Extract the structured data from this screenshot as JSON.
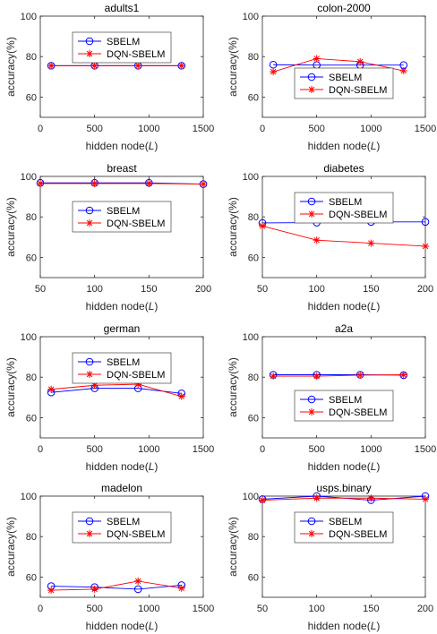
{
  "colors": {
    "sbelm": "#0000ff",
    "dqn": "#ff0000",
    "axis": "#262626"
  },
  "legend_labels": [
    "SBELM",
    "DQN-SBELM"
  ],
  "chart_data": [
    {
      "type": "line",
      "title": "adults1",
      "xlabel": "hidden node(L)",
      "ylabel": "accuracy(%)",
      "x": [
        100,
        500,
        900,
        1300
      ],
      "xlim": [
        0,
        1500
      ],
      "ylim": [
        50,
        100
      ],
      "xticks": [
        0,
        500,
        1000,
        1500
      ],
      "yticks": [
        60,
        80,
        100
      ],
      "legend": "upper-middle",
      "series": [
        {
          "name": "SBELM",
          "marker": "circle",
          "values": [
            75.5,
            75.5,
            75.5,
            75.5
          ]
        },
        {
          "name": "DQN-SBELM",
          "marker": "star",
          "values": [
            75.5,
            75.5,
            75.5,
            75.5
          ]
        }
      ]
    },
    {
      "type": "line",
      "title": "colon-2000",
      "xlabel": "hidden node(L)",
      "ylabel": "accuracy(%)",
      "x": [
        100,
        500,
        900,
        1300
      ],
      "xlim": [
        0,
        1500
      ],
      "ylim": [
        50,
        100
      ],
      "xticks": [
        0,
        500,
        1000,
        1500
      ],
      "yticks": [
        60,
        80,
        100
      ],
      "legend": "center",
      "series": [
        {
          "name": "SBELM",
          "marker": "circle",
          "values": [
            76,
            75.8,
            75.8,
            75.8
          ]
        },
        {
          "name": "DQN-SBELM",
          "marker": "star",
          "values": [
            72.5,
            79,
            77.5,
            73
          ]
        }
      ]
    },
    {
      "type": "line",
      "title": "breast",
      "xlabel": "hidden node(L)",
      "ylabel": "accuracy(%)",
      "x": [
        50,
        100,
        150,
        200
      ],
      "xlim": [
        50,
        200
      ],
      "ylim": [
        50,
        100
      ],
      "xticks": [
        50,
        100,
        150,
        200
      ],
      "yticks": [
        60,
        80,
        100
      ],
      "legend": "middle",
      "series": [
        {
          "name": "SBELM",
          "marker": "circle",
          "values": [
            96.8,
            96.8,
            96.8,
            96.2
          ]
        },
        {
          "name": "DQN-SBELM",
          "marker": "star",
          "values": [
            96.5,
            96.5,
            96.5,
            96.2
          ]
        }
      ]
    },
    {
      "type": "line",
      "title": "diabetes",
      "xlabel": "hidden node(L)",
      "ylabel": "accuracy(%)",
      "x": [
        50,
        100,
        150,
        200
      ],
      "xlim": [
        50,
        200
      ],
      "ylim": [
        50,
        100
      ],
      "xticks": [
        50,
        100,
        150,
        200
      ],
      "yticks": [
        60,
        80,
        100
      ],
      "legend": "upper-middle",
      "series": [
        {
          "name": "SBELM",
          "marker": "circle",
          "values": [
            77,
            77.2,
            77.5,
            77.5
          ]
        },
        {
          "name": "DQN-SBELM",
          "marker": "star",
          "values": [
            75.5,
            68.5,
            67,
            65.5
          ]
        }
      ]
    },
    {
      "type": "line",
      "title": "german",
      "xlabel": "hidden node(L)",
      "ylabel": "accuracy(%)",
      "x": [
        100,
        500,
        900,
        1300
      ],
      "xlim": [
        0,
        1500
      ],
      "ylim": [
        50,
        100
      ],
      "xticks": [
        0,
        500,
        1000,
        1500
      ],
      "yticks": [
        60,
        80,
        100
      ],
      "legend": "upper-middle",
      "series": [
        {
          "name": "SBELM",
          "marker": "circle",
          "values": [
            72.5,
            74.5,
            74.5,
            72
          ]
        },
        {
          "name": "DQN-SBELM",
          "marker": "star",
          "values": [
            74,
            76,
            76.5,
            70.5
          ]
        }
      ]
    },
    {
      "type": "line",
      "title": "a2a",
      "xlabel": "hidden node(L)",
      "ylabel": "accuracy(%)",
      "x": [
        100,
        500,
        900,
        1300
      ],
      "xlim": [
        0,
        1500
      ],
      "ylim": [
        50,
        100
      ],
      "xticks": [
        0,
        500,
        1000,
        1500
      ],
      "yticks": [
        60,
        80,
        100
      ],
      "legend": "lower-middle",
      "series": [
        {
          "name": "SBELM",
          "marker": "circle",
          "values": [
            81.2,
            81.2,
            81.2,
            81
          ]
        },
        {
          "name": "DQN-SBELM",
          "marker": "star",
          "values": [
            80.5,
            80.5,
            81,
            81.2
          ]
        }
      ]
    },
    {
      "type": "line",
      "title": "madelon",
      "xlabel": "hidden node(L)",
      "ylabel": "accuracy(%)",
      "x": [
        100,
        500,
        900,
        1300
      ],
      "xlim": [
        0,
        1500
      ],
      "ylim": [
        50,
        100
      ],
      "xticks": [
        0,
        500,
        1000,
        1500
      ],
      "yticks": [
        60,
        80,
        100
      ],
      "legend": "upper-middle",
      "series": [
        {
          "name": "SBELM",
          "marker": "circle",
          "values": [
            55.5,
            55,
            54,
            56
          ]
        },
        {
          "name": "DQN-SBELM",
          "marker": "star",
          "values": [
            53.5,
            54,
            58,
            54.5
          ]
        }
      ]
    },
    {
      "type": "line",
      "title": "usps.binary",
      "xlabel": "hidden node(L)",
      "ylabel": "accuracy(%)",
      "x": [
        50,
        100,
        150,
        200
      ],
      "xlim": [
        50,
        200
      ],
      "ylim": [
        50,
        100
      ],
      "xticks": [
        50,
        100,
        150,
        200
      ],
      "yticks": [
        60,
        80,
        100
      ],
      "legend": "upper-middle",
      "series": [
        {
          "name": "SBELM",
          "marker": "circle",
          "values": [
            98.5,
            100,
            98,
            100
          ]
        },
        {
          "name": "DQN-SBELM",
          "marker": "star",
          "values": [
            98,
            99,
            99,
            98.5
          ]
        }
      ]
    }
  ]
}
